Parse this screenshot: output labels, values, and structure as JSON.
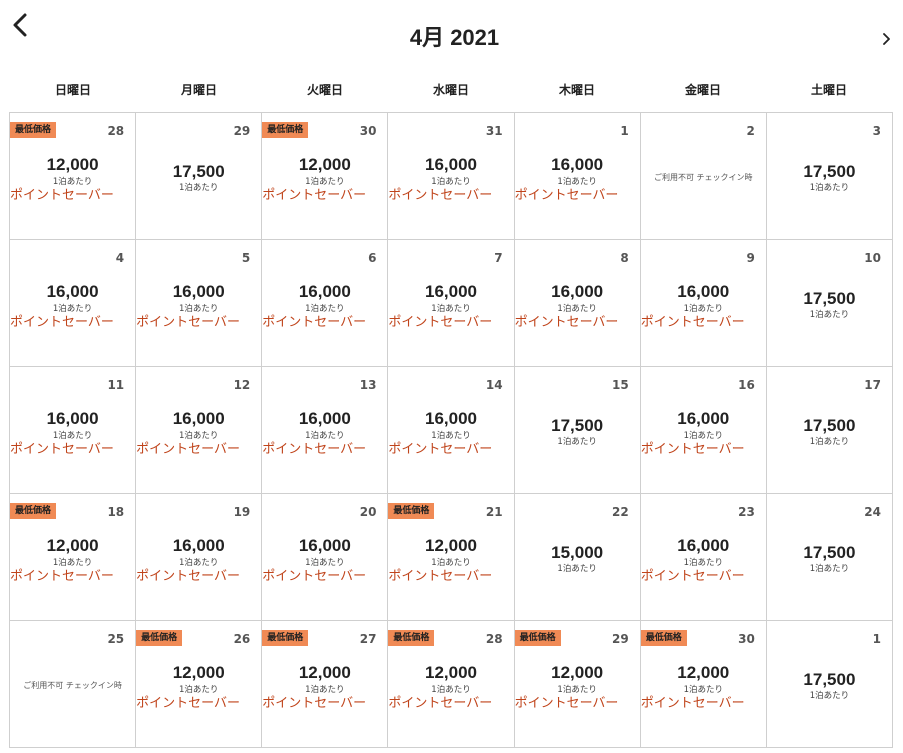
{
  "header": {
    "title": "4月 2021",
    "back_icon": "chevron-left-icon",
    "next_icon": "chevron-right-icon"
  },
  "weekdays": [
    "日曜日",
    "月曜日",
    "火曜日",
    "水曜日",
    "木曜日",
    "金曜日",
    "土曜日"
  ],
  "labels": {
    "per_night": "1泊あたり",
    "points_saver": "ポイントセーバー",
    "lowest_badge": "最低価格",
    "unavailable": "ご利用不可 チェックイン時"
  },
  "colors": {
    "badge": "#f08a55",
    "points_saver": "#c0441b",
    "grid_line": "#cfcfcf"
  },
  "days": [
    {
      "day": "28",
      "price": "12,000",
      "saver": true,
      "lowest": true
    },
    {
      "day": "29",
      "price": "17,500",
      "saver": false,
      "lowest": false
    },
    {
      "day": "30",
      "price": "12,000",
      "saver": true,
      "lowest": true
    },
    {
      "day": "31",
      "price": "16,000",
      "saver": true,
      "lowest": false
    },
    {
      "day": "1",
      "price": "16,000",
      "saver": true,
      "lowest": false
    },
    {
      "day": "2",
      "unavailable": true
    },
    {
      "day": "3",
      "price": "17,500",
      "saver": false,
      "lowest": false
    },
    {
      "day": "4",
      "price": "16,000",
      "saver": true,
      "lowest": false
    },
    {
      "day": "5",
      "price": "16,000",
      "saver": true,
      "lowest": false
    },
    {
      "day": "6",
      "price": "16,000",
      "saver": true,
      "lowest": false
    },
    {
      "day": "7",
      "price": "16,000",
      "saver": true,
      "lowest": false
    },
    {
      "day": "8",
      "price": "16,000",
      "saver": true,
      "lowest": false
    },
    {
      "day": "9",
      "price": "16,000",
      "saver": true,
      "lowest": false
    },
    {
      "day": "10",
      "price": "17,500",
      "saver": false,
      "lowest": false
    },
    {
      "day": "11",
      "price": "16,000",
      "saver": true,
      "lowest": false
    },
    {
      "day": "12",
      "price": "16,000",
      "saver": true,
      "lowest": false
    },
    {
      "day": "13",
      "price": "16,000",
      "saver": true,
      "lowest": false
    },
    {
      "day": "14",
      "price": "16,000",
      "saver": true,
      "lowest": false
    },
    {
      "day": "15",
      "price": "17,500",
      "saver": false,
      "lowest": false
    },
    {
      "day": "16",
      "price": "16,000",
      "saver": true,
      "lowest": false
    },
    {
      "day": "17",
      "price": "17,500",
      "saver": false,
      "lowest": false
    },
    {
      "day": "18",
      "price": "12,000",
      "saver": true,
      "lowest": true
    },
    {
      "day": "19",
      "price": "16,000",
      "saver": true,
      "lowest": false
    },
    {
      "day": "20",
      "price": "16,000",
      "saver": true,
      "lowest": false
    },
    {
      "day": "21",
      "price": "12,000",
      "saver": true,
      "lowest": true
    },
    {
      "day": "22",
      "price": "15,000",
      "saver": false,
      "lowest": false
    },
    {
      "day": "23",
      "price": "16,000",
      "saver": true,
      "lowest": false
    },
    {
      "day": "24",
      "price": "17,500",
      "saver": false,
      "lowest": false
    },
    {
      "day": "25",
      "unavailable": true
    },
    {
      "day": "26",
      "price": "12,000",
      "saver": true,
      "lowest": true
    },
    {
      "day": "27",
      "price": "12,000",
      "saver": true,
      "lowest": true
    },
    {
      "day": "28",
      "price": "12,000",
      "saver": true,
      "lowest": true
    },
    {
      "day": "29",
      "price": "12,000",
      "saver": true,
      "lowest": true
    },
    {
      "day": "30",
      "price": "12,000",
      "saver": true,
      "lowest": true
    },
    {
      "day": "1",
      "price": "17,500",
      "saver": false,
      "lowest": false
    }
  ]
}
